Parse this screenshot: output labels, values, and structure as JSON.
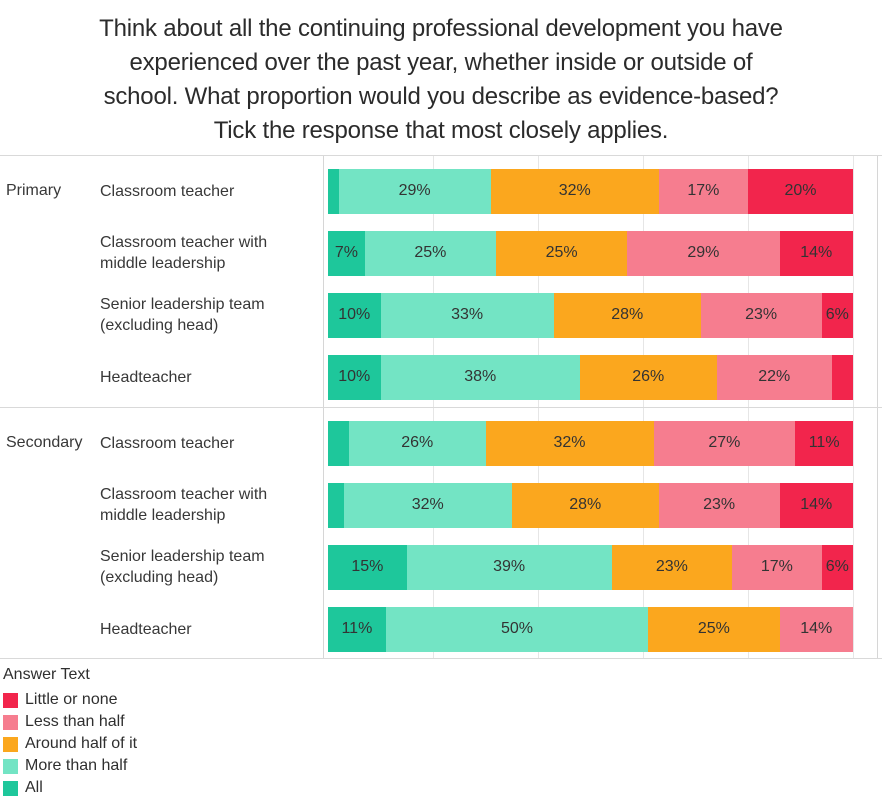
{
  "chart_data": {
    "type": "bar",
    "stacked": true,
    "orientation": "horizontal",
    "title": "Think about all the continuing professional development you have experienced over the past year, whether inside or outside of school. What proportion would you describe as evidence-based? Tick the response that most closely applies.",
    "title_lines": [
      "Think about all the continuing professional development you have",
      "experienced over the past year, whether inside or outside of",
      "school. What proportion would you describe as evidence-based?",
      "Tick the response that most closely applies."
    ],
    "legend_title": "Answer Text",
    "legend_position": "bottom-left",
    "x_axis": {
      "min_pct": 0,
      "max_pct": 100,
      "gridlines_every_pct": 20,
      "tick_labels_visible": false
    },
    "stack_order": [
      "All",
      "More than half",
      "Around half of it",
      "Less than half",
      "Little or none"
    ],
    "legend": [
      {
        "name": "Little or none",
        "color": "#F2254C"
      },
      {
        "name": "Less than half",
        "color": "#F67D8F"
      },
      {
        "name": "Around half of it",
        "color": "#FBA71E"
      },
      {
        "name": "More than half",
        "color": "#73E4C4"
      },
      {
        "name": "All",
        "color": "#1EC79B"
      }
    ],
    "groups": [
      {
        "label": "Primary",
        "rows": [
          {
            "label": "Classroom teacher",
            "segments": [
              {
                "name": "All",
                "value": 2,
                "label": ""
              },
              {
                "name": "More than half",
                "value": 29,
                "label": "29%"
              },
              {
                "name": "Around half of it",
                "value": 32,
                "label": "32%"
              },
              {
                "name": "Less than half",
                "value": 17,
                "label": "17%"
              },
              {
                "name": "Little or none",
                "value": 20,
                "label": "20%"
              }
            ]
          },
          {
            "label": "Classroom teacher with middle leadership",
            "segments": [
              {
                "name": "All",
                "value": 7,
                "label": "7%"
              },
              {
                "name": "More than half",
                "value": 25,
                "label": "25%"
              },
              {
                "name": "Around half of it",
                "value": 25,
                "label": "25%"
              },
              {
                "name": "Less than half",
                "value": 29,
                "label": "29%"
              },
              {
                "name": "Little or none",
                "value": 14,
                "label": "14%"
              }
            ]
          },
          {
            "label": "Senior leadership team (excluding head)",
            "segments": [
              {
                "name": "All",
                "value": 10,
                "label": "10%"
              },
              {
                "name": "More than half",
                "value": 33,
                "label": "33%"
              },
              {
                "name": "Around half of it",
                "value": 28,
                "label": "28%"
              },
              {
                "name": "Less than half",
                "value": 23,
                "label": "23%"
              },
              {
                "name": "Little or none",
                "value": 6,
                "label": "6%"
              }
            ]
          },
          {
            "label": "Headteacher",
            "segments": [
              {
                "name": "All",
                "value": 10,
                "label": "10%"
              },
              {
                "name": "More than half",
                "value": 38,
                "label": "38%"
              },
              {
                "name": "Around half of it",
                "value": 26,
                "label": "26%"
              },
              {
                "name": "Less than half",
                "value": 22,
                "label": "22%"
              },
              {
                "name": "Little or none",
                "value": 4,
                "label": ""
              }
            ]
          }
        ]
      },
      {
        "label": "Secondary",
        "rows": [
          {
            "label": "Classroom teacher",
            "segments": [
              {
                "name": "All",
                "value": 4,
                "label": ""
              },
              {
                "name": "More than half",
                "value": 26,
                "label": "26%"
              },
              {
                "name": "Around half of it",
                "value": 32,
                "label": "32%"
              },
              {
                "name": "Less than half",
                "value": 27,
                "label": "27%"
              },
              {
                "name": "Little or none",
                "value": 11,
                "label": "11%"
              }
            ]
          },
          {
            "label": "Classroom teacher with middle leadership",
            "segments": [
              {
                "name": "All",
                "value": 3,
                "label": ""
              },
              {
                "name": "More than half",
                "value": 32,
                "label": "32%"
              },
              {
                "name": "Around half of it",
                "value": 28,
                "label": "28%"
              },
              {
                "name": "Less than half",
                "value": 23,
                "label": "23%"
              },
              {
                "name": "Little or none",
                "value": 14,
                "label": "14%"
              }
            ]
          },
          {
            "label": "Senior leadership team (excluding head)",
            "segments": [
              {
                "name": "All",
                "value": 15,
                "label": "15%"
              },
              {
                "name": "More than half",
                "value": 39,
                "label": "39%"
              },
              {
                "name": "Around half of it",
                "value": 23,
                "label": "23%"
              },
              {
                "name": "Less than half",
                "value": 17,
                "label": "17%"
              },
              {
                "name": "Little or none",
                "value": 6,
                "label": "6%"
              }
            ]
          },
          {
            "label": "Headteacher",
            "segments": [
              {
                "name": "All",
                "value": 11,
                "label": "11%"
              },
              {
                "name": "More than half",
                "value": 50,
                "label": "50%"
              },
              {
                "name": "Around half of it",
                "value": 25,
                "label": "25%"
              },
              {
                "name": "Less than half",
                "value": 14,
                "label": "14%"
              },
              {
                "name": "Little or none",
                "value": 0,
                "label": ""
              }
            ]
          }
        ]
      }
    ]
  }
}
